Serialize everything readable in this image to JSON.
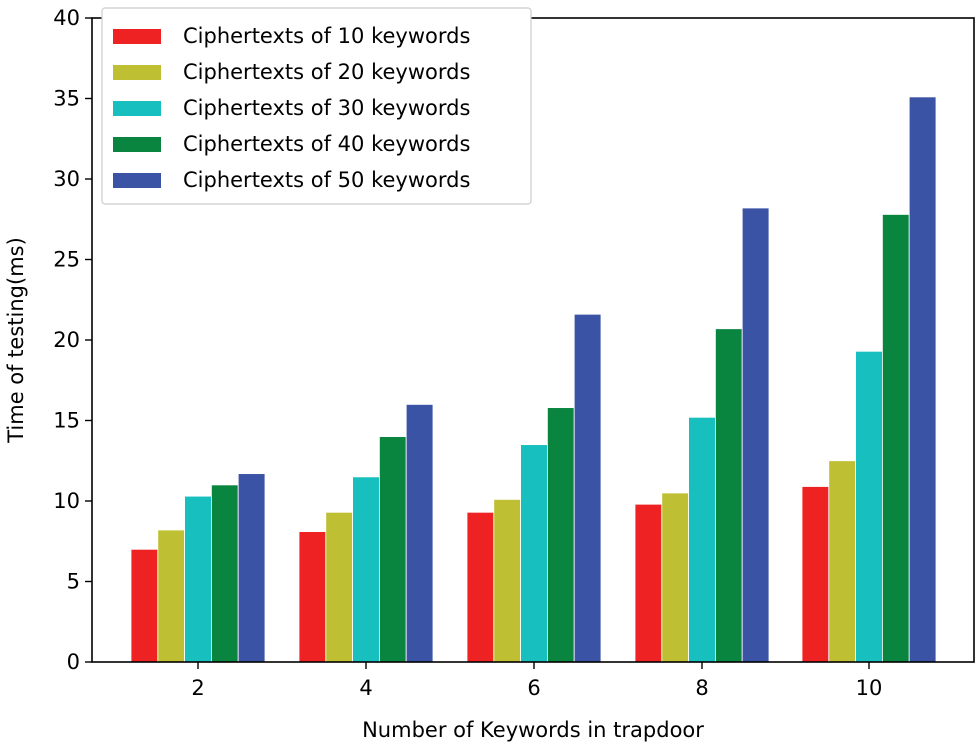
{
  "chart_data": {
    "type": "bar",
    "title": "",
    "xlabel": "Number of Keywords in trapdoor",
    "ylabel": "Time of testing(ms)",
    "categories": [
      "2",
      "4",
      "6",
      "8",
      "10"
    ],
    "ylim": [
      0,
      40
    ],
    "yticks": [
      0,
      5,
      10,
      15,
      20,
      25,
      30,
      35,
      40
    ],
    "grid": false,
    "legend_position": "top-left",
    "series": [
      {
        "name": "Ciphertexts of 10 keywords",
        "color": "#ee2222",
        "values": [
          7.0,
          8.1,
          9.3,
          9.8,
          10.9
        ]
      },
      {
        "name": "Ciphertexts of 20 keywords",
        "color": "#bfbf33",
        "values": [
          8.2,
          9.3,
          10.1,
          10.5,
          12.5
        ]
      },
      {
        "name": "Ciphertexts of 30 keywords",
        "color": "#17bfbf",
        "values": [
          10.3,
          11.5,
          13.5,
          15.2,
          19.3
        ]
      },
      {
        "name": "Ciphertexts of 40 keywords",
        "color": "#0a8540",
        "values": [
          11.0,
          14.0,
          15.8,
          20.7,
          27.8
        ]
      },
      {
        "name": "Ciphertexts of 50 keywords",
        "color": "#3a53a4",
        "values": [
          11.7,
          16.0,
          21.6,
          28.2,
          35.1
        ]
      }
    ]
  }
}
